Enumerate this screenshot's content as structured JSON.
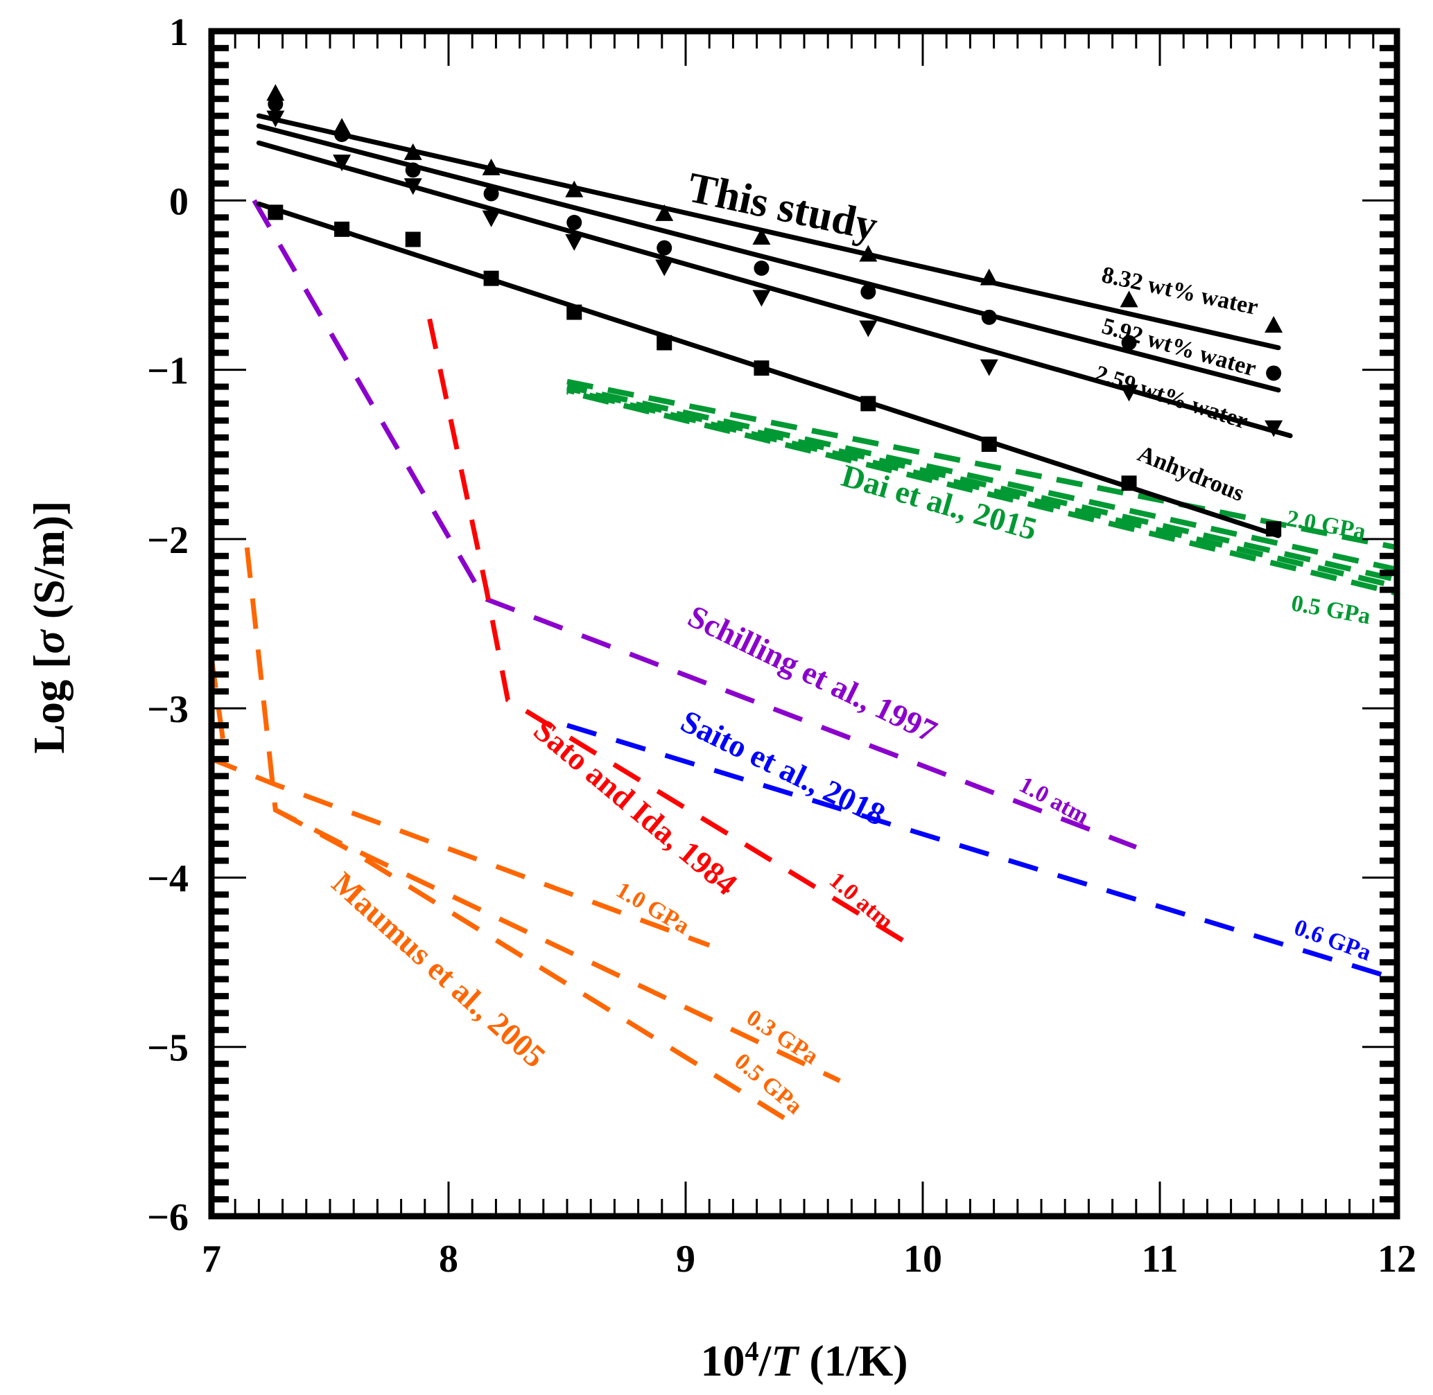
{
  "chart_data": {
    "type": "line",
    "title": "",
    "xlabel": "10^4/T (1/K)",
    "xlabel_parts": {
      "base": "10",
      "sup": "4",
      "slash": "/",
      "var": "T",
      "unit": " (1/K)"
    },
    "ylabel": "Log [σ (S/m)]",
    "ylabel_parts": {
      "pre": "Log [",
      "sym": "σ",
      "post": " (S/m)]"
    },
    "xlim": [
      7,
      12
    ],
    "ylim": [
      -6,
      1
    ],
    "x_ticks": [
      7,
      8,
      9,
      10,
      11,
      12
    ],
    "x_tick_labels": [
      "7",
      "8",
      "9",
      "10",
      "11",
      "12"
    ],
    "y_ticks": [
      1,
      0,
      -1,
      -2,
      -3,
      -4,
      -5,
      -6
    ],
    "y_tick_labels": [
      "1",
      "0",
      "−1",
      "−2",
      "−3",
      "−4",
      "−5",
      "−6"
    ],
    "minor_ticks_per_major": 10,
    "grid": false,
    "colors": {
      "this_study": "#000000",
      "dai": "#009933",
      "schilling": "#8B00CC",
      "sato": "#FF0000",
      "saito": "#0000FF",
      "maumus": "#FF6600"
    },
    "scatter_series": [
      {
        "name": "8.32 wt% water",
        "marker": "triangle-up",
        "x": [
          7.27,
          7.55,
          7.85,
          8.18,
          8.53,
          8.91,
          9.32,
          9.77,
          10.28,
          10.87,
          11.48
        ],
        "y": [
          0.63,
          0.43,
          0.28,
          0.19,
          0.06,
          -0.08,
          -0.22,
          -0.32,
          -0.46,
          -0.59,
          -0.74
        ]
      },
      {
        "name": "5.92 wt% water",
        "marker": "circle",
        "x": [
          7.27,
          7.55,
          7.85,
          8.18,
          8.53,
          8.91,
          9.32,
          9.77,
          10.28,
          10.87,
          11.48
        ],
        "y": [
          0.57,
          0.39,
          0.18,
          0.04,
          -0.13,
          -0.28,
          -0.4,
          -0.54,
          -0.69,
          -0.84,
          -1.02
        ]
      },
      {
        "name": "2.59 wt% water",
        "marker": "triangle-down",
        "x": [
          7.27,
          7.55,
          7.85,
          8.18,
          8.53,
          8.91,
          9.32,
          9.77,
          10.28,
          10.87,
          11.48
        ],
        "y": [
          0.49,
          0.23,
          0.09,
          -0.1,
          -0.24,
          -0.39,
          -0.57,
          -0.75,
          -0.98,
          -1.13,
          -1.34
        ]
      },
      {
        "name": "Anhydrous",
        "marker": "square",
        "x": [
          7.27,
          7.55,
          7.85,
          8.18,
          8.53,
          8.91,
          9.32,
          9.77,
          10.28,
          10.87,
          11.48
        ],
        "y": [
          -0.07,
          -0.17,
          -0.23,
          -0.46,
          -0.66,
          -0.84,
          -0.99,
          -1.2,
          -1.44,
          -1.67,
          -1.94
        ]
      }
    ],
    "fit_lines": [
      {
        "name": "8.32 wt% water fit",
        "points": [
          [
            7.2,
            0.5
          ],
          [
            11.5,
            -0.87
          ]
        ]
      },
      {
        "name": "5.92 wt% water fit",
        "points": [
          [
            7.2,
            0.44
          ],
          [
            11.5,
            -1.12
          ]
        ]
      },
      {
        "name": "2.59 wt% water fit",
        "points": [
          [
            7.2,
            0.34
          ],
          [
            11.55,
            -1.39
          ]
        ]
      },
      {
        "name": "Anhydrous fit",
        "points": [
          [
            7.2,
            -0.02
          ],
          [
            11.5,
            -1.98
          ]
        ]
      }
    ],
    "dashed_series": [
      {
        "name": "Dai et al., 2015 (2.0 GPa)",
        "group": "dai",
        "points": [
          [
            8.5,
            -1.07
          ],
          [
            12.0,
            -2.05
          ]
        ]
      },
      {
        "name": "Dai et al., 2015 (a)",
        "group": "dai",
        "points": [
          [
            8.5,
            -1.1
          ],
          [
            12.0,
            -2.18
          ]
        ]
      },
      {
        "name": "Dai et al., 2015 (b)",
        "group": "dai",
        "points": [
          [
            8.5,
            -1.11
          ],
          [
            12.0,
            -2.24
          ]
        ]
      },
      {
        "name": "Dai et al., 2015 (c)",
        "group": "dai",
        "points": [
          [
            8.5,
            -1.12
          ],
          [
            12.0,
            -2.28
          ]
        ]
      },
      {
        "name": "Dai et al., 2015 (0.5 GPa)",
        "group": "dai",
        "points": [
          [
            8.5,
            -1.13
          ],
          [
            12.0,
            -2.32
          ]
        ]
      },
      {
        "name": "Schilling et al., 1997 (1.0 atm)",
        "group": "schilling",
        "points": [
          [
            7.18,
            0.0
          ],
          [
            8.15,
            -2.35
          ],
          [
            10.9,
            -3.82
          ]
        ]
      },
      {
        "name": "Sato and Ida, 1984 (1.0 atm)",
        "group": "sato",
        "points": [
          [
            7.92,
            -0.7
          ],
          [
            8.16,
            -2.3
          ],
          [
            8.25,
            -2.95
          ],
          [
            9.95,
            -4.4
          ]
        ]
      },
      {
        "name": "Saito et al., 2018 (0.6 GPa)",
        "group": "saito",
        "points": [
          [
            8.5,
            -3.1
          ],
          [
            12.0,
            -4.6
          ]
        ]
      },
      {
        "name": "Maumus et al., 2005 (1.0 GPa)",
        "group": "maumus",
        "points": [
          [
            7.0,
            -2.7
          ],
          [
            7.05,
            -3.2
          ],
          [
            7.0,
            -3.3
          ],
          [
            7.27,
            -3.45
          ],
          [
            9.1,
            -4.4
          ]
        ]
      },
      {
        "name": "Maumus et al., 2005 (0.3 GPa)",
        "group": "maumus",
        "points": [
          [
            7.15,
            -2.05
          ],
          [
            7.27,
            -3.6
          ],
          [
            7.55,
            -3.8
          ],
          [
            9.65,
            -5.2
          ]
        ]
      },
      {
        "name": "Maumus et al., 2005 (0.5 GPa)",
        "group": "maumus",
        "points": [
          [
            7.27,
            -3.6
          ],
          [
            7.6,
            -3.85
          ],
          [
            9.45,
            -5.45
          ]
        ]
      }
    ],
    "annotations": [
      {
        "text": "This study",
        "group": "this_study",
        "kind": "title-anno",
        "x": 9.0,
        "y": 0.0,
        "angle": 12
      },
      {
        "text": "8.32 wt% water",
        "group": "this_study",
        "kind": "anno",
        "x": 10.75,
        "y": -0.48,
        "angle": 12
      },
      {
        "text": "5.92 wt% water",
        "group": "this_study",
        "kind": "anno",
        "x": 10.75,
        "y": -0.78,
        "angle": 16
      },
      {
        "text": "2.59 wt% water",
        "group": "this_study",
        "kind": "anno",
        "x": 10.72,
        "y": -1.06,
        "angle": 18
      },
      {
        "text": "Anhydrous",
        "group": "this_study",
        "kind": "anno",
        "x": 10.9,
        "y": -1.53,
        "angle": 22
      },
      {
        "text": "Dai et al., 2015",
        "group": "dai",
        "kind": "big-anno",
        "x": 9.65,
        "y": -1.68,
        "angle": 16
      },
      {
        "text": "2.0 GPa",
        "group": "dai",
        "kind": "anno",
        "x": 11.53,
        "y": -1.92,
        "angle": 10
      },
      {
        "text": "0.5 GPa",
        "group": "dai",
        "kind": "anno",
        "x": 11.55,
        "y": -2.42,
        "angle": 10
      },
      {
        "text": "Schilling et al., 1997",
        "group": "schilling",
        "kind": "big-anno",
        "x": 9.0,
        "y": -2.5,
        "angle": 26
      },
      {
        "text": "1.0 atm",
        "group": "schilling",
        "kind": "anno",
        "x": 10.4,
        "y": -3.48,
        "angle": 28
      },
      {
        "text": "Saito et al., 2018",
        "group": "saito",
        "kind": "big-anno",
        "x": 8.97,
        "y": -3.12,
        "angle": 26
      },
      {
        "text": "0.6 GPa",
        "group": "saito",
        "kind": "anno",
        "x": 11.56,
        "y": -4.33,
        "angle": 20
      },
      {
        "text": "Sato and Ida, 1984",
        "group": "sato",
        "kind": "big-anno",
        "x": 8.35,
        "y": -3.15,
        "angle": 40
      },
      {
        "text": "1.0 atm",
        "group": "sato",
        "kind": "anno",
        "x": 9.6,
        "y": -4.03,
        "angle": 40
      },
      {
        "text": "Maumus et al., 2005",
        "group": "maumus",
        "kind": "big-anno",
        "x": 7.5,
        "y": -4.05,
        "angle": 42
      },
      {
        "text": "1.0 GPa",
        "group": "maumus",
        "kind": "anno",
        "x": 8.7,
        "y": -4.1,
        "angle": 30
      },
      {
        "text": "0.3 GPa",
        "group": "maumus",
        "kind": "anno",
        "x": 9.25,
        "y": -4.85,
        "angle": 33
      },
      {
        "text": "0.5 GPa",
        "group": "maumus",
        "kind": "anno",
        "x": 9.2,
        "y": -5.1,
        "angle": 40
      }
    ]
  }
}
